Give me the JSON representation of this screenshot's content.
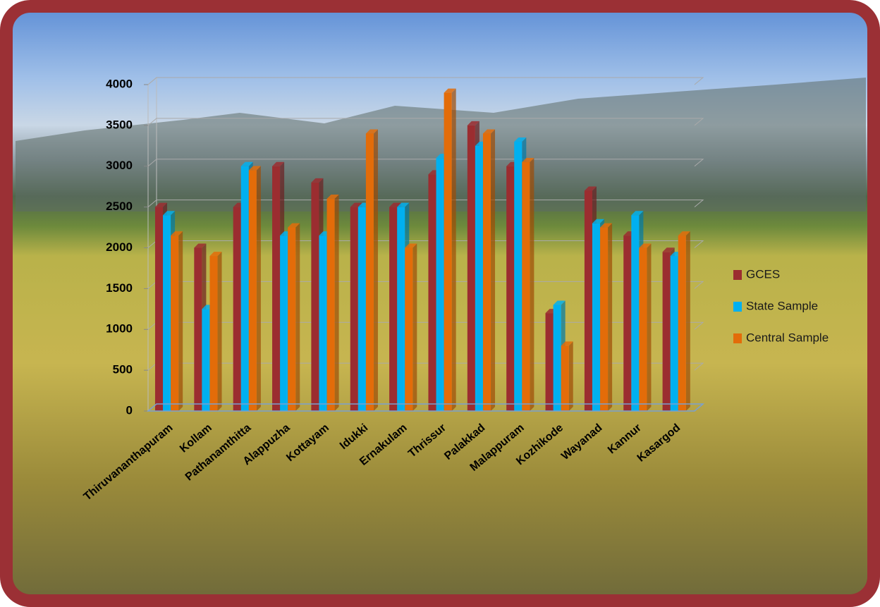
{
  "chart_data": {
    "type": "bar",
    "categories": [
      "Thiruvananthapuram",
      "Kollam",
      "Pathanamthitta",
      "Alappuzha",
      "Kottayam",
      "Idukki",
      "Ernakulam",
      "Thrissur",
      "Palakkad",
      "Malappuram",
      "Kozhikode",
      "Wayanad",
      "Kannur",
      "Kasargod"
    ],
    "series": [
      {
        "name": "GCES",
        "color": "#9b2d30",
        "values": [
          2500,
          2000,
          2500,
          3000,
          2800,
          2500,
          2500,
          2900,
          3500,
          3000,
          1200,
          2700,
          2150,
          1950
        ]
      },
      {
        "name": "State Sample",
        "color": "#00b0f0",
        "values": [
          2400,
          1250,
          3000,
          2150,
          2150,
          2500,
          2500,
          3100,
          3250,
          3300,
          1300,
          2300,
          2400,
          1900
        ]
      },
      {
        "name": "Central Sample",
        "color": "#e36c09",
        "values": [
          2150,
          1900,
          2950,
          2250,
          2600,
          3400,
          2000,
          3900,
          3400,
          3050,
          800,
          2250,
          2000,
          2150
        ]
      }
    ],
    "ylim": [
      0,
      4000
    ],
    "yticks": [
      0,
      500,
      1000,
      1500,
      2000,
      2500,
      3000,
      3500,
      4000
    ],
    "grid": true,
    "legend": "right"
  }
}
